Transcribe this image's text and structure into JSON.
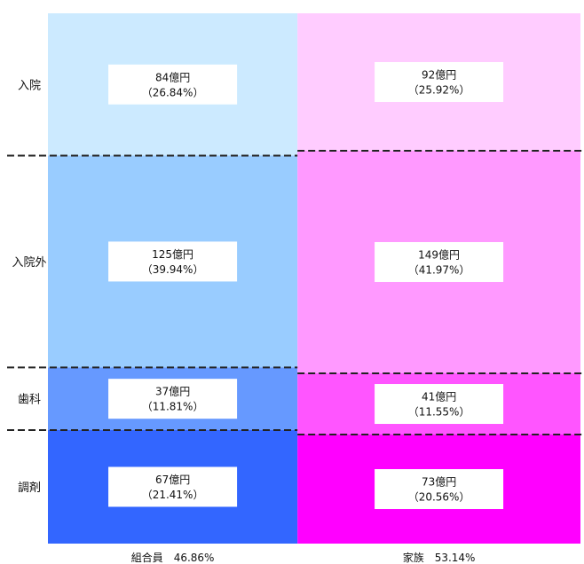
{
  "chart_data": {
    "type": "mosaic",
    "row_labels": [
      "入院",
      "入院外",
      "歯科",
      "調剤"
    ],
    "columns": [
      {
        "label": "組合員　46.86%",
        "share_percent": 46.86,
        "colors": [
          "#cceaff",
          "#99ccff",
          "#6699ff",
          "#3366ff"
        ],
        "cells": [
          {
            "amount": "84億円",
            "percent_text": "（26.84%）",
            "percent": 26.84
          },
          {
            "amount": "125億円",
            "percent_text": "（39.94%）",
            "percent": 39.94
          },
          {
            "amount": "37億円",
            "percent_text": "（11.81%）",
            "percent": 11.81
          },
          {
            "amount": "67億円",
            "percent_text": "（21.41%）",
            "percent": 21.41
          }
        ]
      },
      {
        "label": "家族　53.14%",
        "share_percent": 53.14,
        "colors": [
          "#ffccff",
          "#ff99ff",
          "#ff55ff",
          "#ff00ff"
        ],
        "cells": [
          {
            "amount": "92億円",
            "percent_text": "（25.92%）",
            "percent": 25.92
          },
          {
            "amount": "149億円",
            "percent_text": "（41.97%）",
            "percent": 41.97
          },
          {
            "amount": "41億円",
            "percent_text": "（11.55%）",
            "percent": 11.55
          },
          {
            "amount": "73億円",
            "percent_text": "（20.56%）",
            "percent": 20.56
          }
        ]
      }
    ]
  }
}
